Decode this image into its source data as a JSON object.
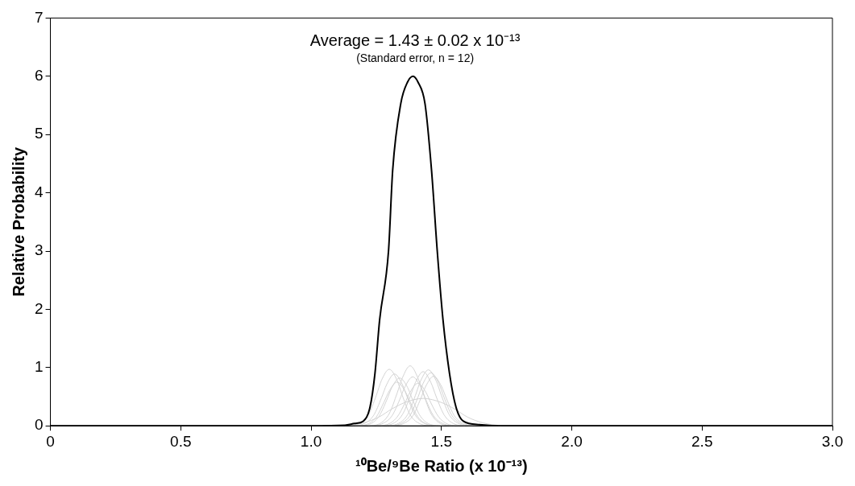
{
  "chart_data": {
    "type": "line",
    "title": "Average = 1.43 ± 0.02 x 10⁻¹³",
    "subtitle": "(Standard error, n = 12)",
    "xlabel": "¹⁰Be/⁹Be Ratio (x 10⁻¹³)",
    "ylabel": "Relative Probability",
    "xlim": [
      0,
      3
    ],
    "ylim": [
      0,
      7
    ],
    "xticks": [
      0,
      0.5,
      {
        "value": 1,
        "label": "1.0"
      },
      1.5,
      {
        "value": 2,
        "label": "2.0"
      },
      2.5,
      {
        "value": 3,
        "label": "3.0"
      }
    ],
    "yticks": [
      0,
      1,
      2,
      3,
      4,
      5,
      6,
      7
    ],
    "grid": false,
    "legend": false,
    "marker": "none",
    "line_style": "solid",
    "series": [
      {
        "color": "#d4d4d4",
        "x": [
          1.14,
          1.18,
          1.22,
          1.25,
          1.27,
          1.3,
          1.33,
          1.35,
          1.38,
          1.42,
          1.46
        ],
        "values": [
          0,
          0.03,
          0.19,
          0.52,
          0.78,
          0.97,
          0.78,
          0.52,
          0.19,
          0.03,
          0
        ]
      },
      {
        "color": "#d4d4d4",
        "x": [
          1.22,
          1.26,
          1.3,
          1.33,
          1.35,
          1.38,
          1.41,
          1.43,
          1.46,
          1.5,
          1.54
        ],
        "values": [
          0,
          0.03,
          0.21,
          0.56,
          0.82,
          1.03,
          0.82,
          0.56,
          0.21,
          0.03,
          0
        ]
      },
      {
        "color": "#d4d4d4",
        "x": [
          1.29,
          1.33,
          1.37,
          1.4,
          1.42,
          1.45,
          1.48,
          1.5,
          1.53,
          1.57,
          1.61
        ],
        "values": [
          0,
          0.03,
          0.19,
          0.52,
          0.77,
          0.96,
          0.77,
          0.52,
          0.19,
          0.03,
          0
        ]
      },
      {
        "color": "#d4d4d4",
        "x": [
          1.16,
          1.2,
          1.24,
          1.27,
          1.29,
          1.32,
          1.35,
          1.37,
          1.4,
          1.44,
          1.48
        ],
        "values": [
          0,
          0.03,
          0.18,
          0.48,
          0.71,
          0.89,
          0.71,
          0.48,
          0.18,
          0.03,
          0
        ]
      },
      {
        "color": "#d4d4d4",
        "x": [
          1.18,
          1.22,
          1.26,
          1.29,
          1.31,
          1.34,
          1.37,
          1.39,
          1.42,
          1.46,
          1.5
        ],
        "values": [
          0,
          0.02,
          0.16,
          0.44,
          0.66,
          0.82,
          0.66,
          0.44,
          0.16,
          0.02,
          0
        ]
      },
      {
        "color": "#d4d4d4",
        "x": [
          1.23,
          1.27,
          1.31,
          1.34,
          1.36,
          1.39,
          1.42,
          1.44,
          1.47,
          1.51,
          1.55
        ],
        "values": [
          0,
          0.03,
          0.17,
          0.45,
          0.67,
          0.84,
          0.67,
          0.45,
          0.17,
          0.03,
          0
        ]
      },
      {
        "color": "#d4d4d4",
        "x": [
          1.3,
          1.34,
          1.38,
          1.41,
          1.43,
          1.46,
          1.49,
          1.51,
          1.54,
          1.58,
          1.62
        ],
        "values": [
          0,
          0.03,
          0.18,
          0.49,
          0.73,
          0.91,
          0.73,
          0.49,
          0.18,
          0.03,
          0
        ]
      },
      {
        "color": "#d4d4d4",
        "x": [
          1.27,
          1.31,
          1.35,
          1.38,
          1.4,
          1.43,
          1.46,
          1.48,
          1.51,
          1.55,
          1.59
        ],
        "values": [
          0,
          0.03,
          0.19,
          0.5,
          0.74,
          0.93,
          0.74,
          0.5,
          0.19,
          0.03,
          0
        ]
      },
      {
        "color": "#d4d4d4",
        "x": [
          1.13,
          1.2,
          1.26,
          1.31,
          1.36,
          1.43,
          1.5,
          1.55,
          1.6,
          1.66,
          1.73
        ],
        "values": [
          0,
          0.05,
          0.15,
          0.29,
          0.4,
          0.47,
          0.4,
          0.29,
          0.15,
          0.05,
          0
        ]
      },
      {
        "color": "#d4d4d4",
        "x": [
          1.17,
          1.21,
          1.25,
          1.28,
          1.3,
          1.33,
          1.36,
          1.38,
          1.41,
          1.45,
          1.49
        ],
        "values": [
          0,
          0.02,
          0.15,
          0.41,
          0.6,
          0.75,
          0.6,
          0.41,
          0.15,
          0.02,
          0
        ]
      },
      {
        "color": "#d4d4d4",
        "x": [
          1.25,
          1.29,
          1.33,
          1.36,
          1.38,
          1.41,
          1.44,
          1.46,
          1.49,
          1.53,
          1.57
        ],
        "values": [
          0,
          0.02,
          0.15,
          0.39,
          0.58,
          0.73,
          0.58,
          0.39,
          0.15,
          0.02,
          0
        ]
      },
      {
        "color": "#d4d4d4",
        "x": [
          1.31,
          1.35,
          1.39,
          1.42,
          1.44,
          1.47,
          1.5,
          1.52,
          1.55,
          1.59,
          1.63
        ],
        "values": [
          0,
          0.03,
          0.17,
          0.46,
          0.68,
          0.85,
          0.68,
          0.46,
          0.17,
          0.03,
          0
        ]
      },
      {
        "color": "#000000",
        "x": [
          0,
          1.0,
          1.13,
          1.167,
          1.2,
          1.226,
          1.245,
          1.263,
          1.297,
          1.313,
          1.344,
          1.37,
          1.391,
          1.41,
          1.437,
          1.462,
          1.484,
          1.506,
          1.531,
          1.556,
          1.584,
          1.646,
          1.72,
          2.0,
          3.0
        ],
        "values": [
          0,
          0,
          0.01,
          0.04,
          0.08,
          0.32,
          0.9,
          1.82,
          3.0,
          4.39,
          5.53,
          5.9,
          6.0,
          5.9,
          5.53,
          4.39,
          3.0,
          1.82,
          0.9,
          0.32,
          0.08,
          0.02,
          0,
          0,
          0
        ]
      }
    ]
  }
}
